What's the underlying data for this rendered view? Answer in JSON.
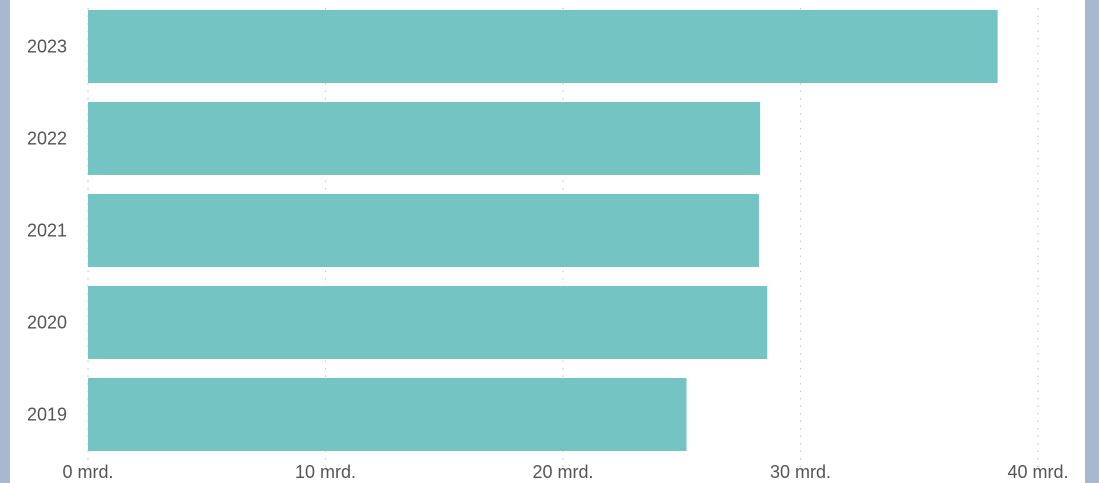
{
  "colors": {
    "bar": "#74c4c4",
    "grid": "#c8c8c8",
    "text": "#555555",
    "frame": "#a8b8d0",
    "panel": "#ffffff"
  },
  "chart_data": {
    "type": "bar",
    "orientation": "horizontal",
    "categories": [
      "2023",
      "2022",
      "2021",
      "2020",
      "2019"
    ],
    "values": [
      38.3,
      28.3,
      28.25,
      28.6,
      25.2
    ],
    "x_ticks": [
      "0 mrd.",
      "10 mrd.",
      "20 mrd.",
      "30 mrd.",
      "40 mrd."
    ],
    "x_tick_values": [
      0,
      10,
      20,
      30,
      40
    ],
    "xlim": [
      0,
      40
    ],
    "grid": true
  }
}
